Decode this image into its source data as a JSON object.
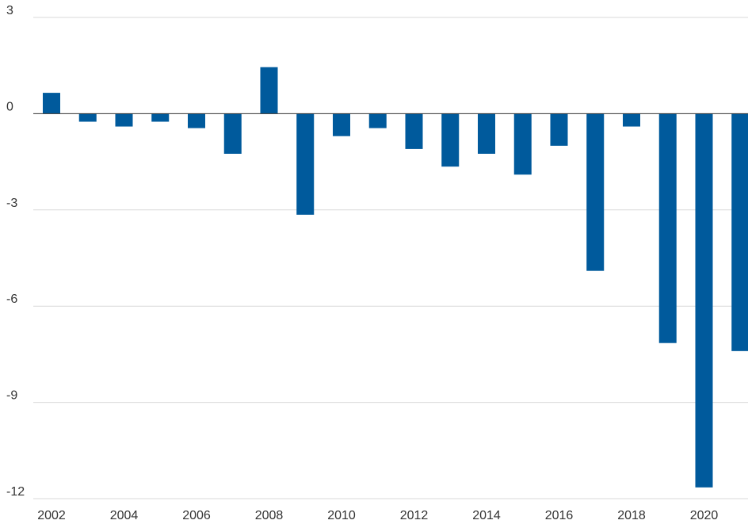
{
  "chart_data": {
    "type": "bar",
    "title": "",
    "xlabel": "",
    "ylabel": "",
    "bar_color": "#005a9c",
    "grid": true,
    "ylim": [
      -12,
      3
    ],
    "yticks": [
      3,
      0,
      -3,
      -6,
      -9,
      -12
    ],
    "ytick_labels": [
      "3",
      "0",
      "-3",
      "-6",
      "-9",
      "-12"
    ],
    "xtick_labels": [
      "2002",
      "2004",
      "2006",
      "2008",
      "2010",
      "2012",
      "2014",
      "2016",
      "2018",
      "2020"
    ],
    "categories": [
      "2002",
      "2003",
      "2004",
      "2005",
      "2006",
      "2007",
      "2008",
      "2009",
      "2010",
      "2011",
      "2012",
      "2013",
      "2014",
      "2015",
      "2016",
      "2017",
      "2018",
      "2019",
      "2020",
      "2021"
    ],
    "values": [
      0.65,
      -0.25,
      -0.4,
      -0.25,
      -0.45,
      -1.25,
      1.45,
      -3.15,
      -0.7,
      -0.45,
      -1.1,
      -1.65,
      -1.25,
      -1.9,
      -1.0,
      -4.9,
      -0.4,
      -7.15,
      -11.65,
      -7.4
    ]
  }
}
